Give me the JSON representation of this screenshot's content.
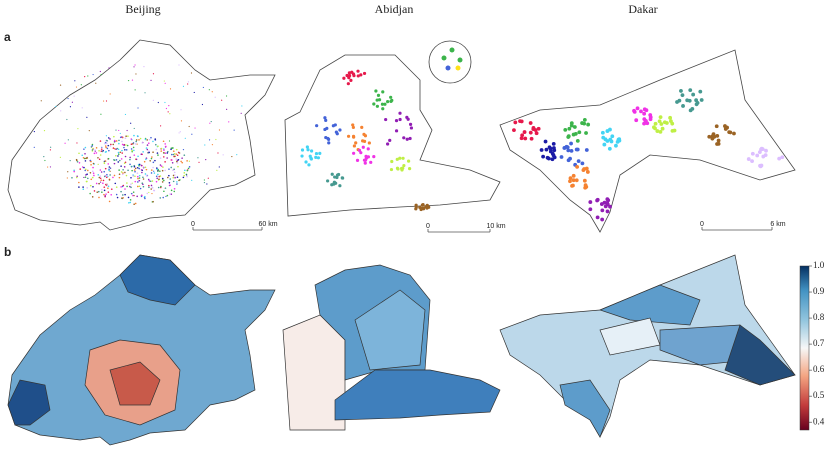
{
  "columns": [
    "Beijing",
    "Abidjan",
    "Dakar"
  ],
  "panel_labels": [
    "a",
    "b"
  ],
  "scale_bars": [
    {
      "start": "0",
      "end": "60 km"
    },
    {
      "start": "0",
      "end": "10 km"
    },
    {
      "start": "0",
      "end": "6 km"
    }
  ],
  "colorbar": {
    "ylim": [
      0.37,
      1.0
    ],
    "ticks": [
      {
        "value": 1.0,
        "label": "1.0"
      },
      0.9,
      0.8,
      0.7,
      0.6,
      0.5,
      0.4
    ]
  }
}
